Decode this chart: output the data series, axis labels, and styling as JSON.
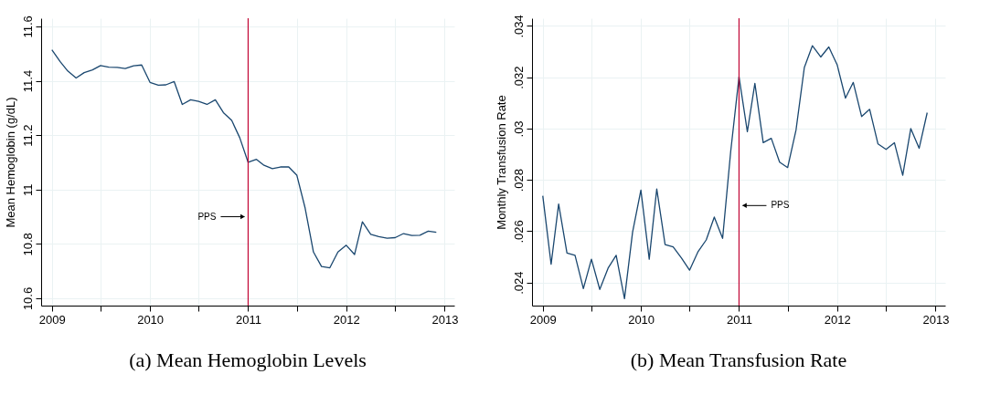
{
  "chart_data": [
    {
      "type": "line",
      "title": "(a) Mean Hemoglobin Levels",
      "ylabel": "Mean Hemoglobin (g/dL)",
      "x": [
        "2009-01",
        "2009-02",
        "2009-03",
        "2009-04",
        "2009-05",
        "2009-06",
        "2009-07",
        "2009-08",
        "2009-09",
        "2009-10",
        "2009-11",
        "2009-12",
        "2010-01",
        "2010-02",
        "2010-03",
        "2010-04",
        "2010-05",
        "2010-06",
        "2010-07",
        "2010-08",
        "2010-09",
        "2010-10",
        "2010-11",
        "2010-12",
        "2011-01",
        "2011-02",
        "2011-03",
        "2011-04",
        "2011-05",
        "2011-06",
        "2011-07",
        "2011-08",
        "2011-09",
        "2011-10",
        "2011-11",
        "2011-12",
        "2012-01",
        "2012-02",
        "2012-03",
        "2012-04",
        "2012-05",
        "2012-06",
        "2012-07",
        "2012-08",
        "2012-09",
        "2012-10",
        "2012-11",
        "2012-12"
      ],
      "series": [
        {
          "color": "#1a476f",
          "values": [
            11.514,
            11.47,
            11.436,
            11.41,
            11.43,
            11.44,
            11.456,
            11.45,
            11.449,
            11.445,
            11.455,
            11.458,
            11.394,
            11.384,
            11.385,
            11.397,
            11.313,
            11.33,
            11.324,
            11.313,
            11.33,
            11.283,
            11.254,
            11.19,
            11.1,
            11.111,
            11.089,
            11.077,
            11.083,
            11.083,
            11.053,
            10.932,
            10.77,
            10.717,
            10.712,
            10.77,
            10.795,
            10.761,
            10.881,
            10.835,
            10.827,
            10.821,
            10.823,
            10.838,
            10.831,
            10.832,
            10.847,
            10.843
          ]
        }
      ],
      "xlim": [
        "2008-11-22",
        "2013-02-06"
      ],
      "xticks": [
        {
          "value": "2009-01",
          "label": "2009"
        },
        {
          "value": "2009-07",
          "label": null
        },
        {
          "value": "2010-01",
          "label": "2010"
        },
        {
          "value": "2010-07",
          "label": null
        },
        {
          "value": "2011-01",
          "label": "2011"
        },
        {
          "value": "2011-07",
          "label": null
        },
        {
          "value": "2012-01",
          "label": "2012"
        },
        {
          "value": "2012-07",
          "label": null
        },
        {
          "value": "2013-01",
          "label": "2013"
        }
      ],
      "ylim": [
        10.573,
        11.63
      ],
      "yticks": [
        10.6,
        10.8,
        11,
        11.2,
        11.4,
        11.6
      ],
      "grid": true,
      "ref_lines": [
        {
          "axis": "x",
          "value": "2011-01",
          "color": "#c10534"
        }
      ],
      "annotations": [
        {
          "text": "PPS",
          "x": "2011-01",
          "y": 10.9
        }
      ]
    },
    {
      "type": "line",
      "title": "(b) Mean Transfusion Rate",
      "ylabel": "Monthly Transfusion Rate",
      "x": [
        "2009-01",
        "2009-02",
        "2009-03",
        "2009-04",
        "2009-05",
        "2009-06",
        "2009-07",
        "2009-08",
        "2009-09",
        "2009-10",
        "2009-11",
        "2009-12",
        "2010-01",
        "2010-02",
        "2010-03",
        "2010-04",
        "2010-05",
        "2010-06",
        "2010-07",
        "2010-08",
        "2010-09",
        "2010-10",
        "2010-11",
        "2010-12",
        "2011-01",
        "2011-02",
        "2011-03",
        "2011-04",
        "2011-05",
        "2011-06",
        "2011-07",
        "2011-08",
        "2011-09",
        "2011-10",
        "2011-11",
        "2011-12",
        "2012-01",
        "2012-02",
        "2012-03",
        "2012-04",
        "2012-05",
        "2012-06",
        "2012-07",
        "2012-08",
        "2012-09",
        "2012-10",
        "2012-11",
        "2012-12"
      ],
      "series": [
        {
          "color": "#1a476f",
          "values": [
            0.02738,
            0.02471,
            0.02706,
            0.02515,
            0.02506,
            0.02376,
            0.02491,
            0.02373,
            0.02456,
            0.02506,
            0.02337,
            0.02596,
            0.0276,
            0.02491,
            0.02765,
            0.02548,
            0.02539,
            0.02495,
            0.02448,
            0.02519,
            0.02566,
            0.02655,
            0.02572,
            0.0291,
            0.03202,
            0.02988,
            0.03176,
            0.02945,
            0.02962,
            0.02869,
            0.02848,
            0.02994,
            0.03238,
            0.03323,
            0.03279,
            0.03318,
            0.03249,
            0.03119,
            0.0318,
            0.03047,
            0.03075,
            0.0294,
            0.02919,
            0.02945,
            0.02818,
            0.03,
            0.02923,
            0.03062
          ]
        }
      ],
      "xlim": [
        "2008-11-22",
        "2013-02-06"
      ],
      "xticks": [
        {
          "value": "2009-01",
          "label": "2009"
        },
        {
          "value": "2009-07",
          "label": null
        },
        {
          "value": "2010-01",
          "label": "2010"
        },
        {
          "value": "2010-07",
          "label": null
        },
        {
          "value": "2011-01",
          "label": "2011"
        },
        {
          "value": "2011-07",
          "label": null
        },
        {
          "value": "2012-01",
          "label": "2012"
        },
        {
          "value": "2012-07",
          "label": null
        },
        {
          "value": "2013-01",
          "label": "2013"
        }
      ],
      "ylim": [
        0.0231,
        0.0343
      ],
      "yticks": [
        {
          "value": 0.024,
          "label": ".024"
        },
        {
          "value": 0.026,
          "label": ".026"
        },
        {
          "value": 0.028,
          "label": ".028"
        },
        {
          "value": 0.03,
          "label": ".03"
        },
        {
          "value": 0.032,
          "label": ".032"
        },
        {
          "value": 0.034,
          "label": ".034"
        }
      ],
      "grid": true,
      "ref_lines": [
        {
          "axis": "x",
          "value": "2011-01",
          "color": "#c10534"
        }
      ],
      "annotations": [
        {
          "text": "PPS",
          "x": "2011-01",
          "y": 0.027
        }
      ]
    }
  ]
}
